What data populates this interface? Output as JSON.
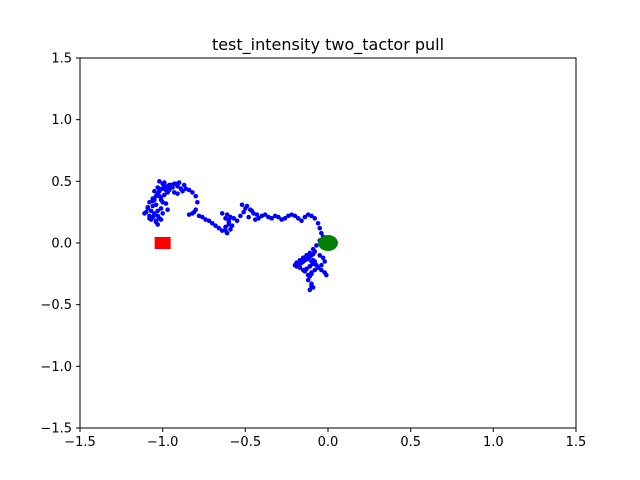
{
  "chart_data": {
    "type": "scatter",
    "title": "test_intensity two_tactor pull",
    "xlabel": "",
    "ylabel": "",
    "xlim": [
      -1.5,
      1.5
    ],
    "ylim": [
      -1.5,
      1.5
    ],
    "xticks": [
      -1.5,
      -1.0,
      -0.5,
      0.0,
      0.5,
      1.0,
      1.5
    ],
    "xtick_labels": [
      "−1.5",
      "−1.0",
      "−0.5",
      "0.0",
      "0.5",
      "1.0",
      "1.5"
    ],
    "yticks": [
      -1.5,
      -1.0,
      -0.5,
      0.0,
      0.5,
      1.0,
      1.5
    ],
    "ytick_labels": [
      "−1.5",
      "−1.0",
      "−0.5",
      "0.0",
      "0.5",
      "1.0",
      "1.5"
    ],
    "grid": false,
    "series": [
      {
        "color": "#0000ff",
        "marker": "dot",
        "x": [
          -1.08,
          -1.1,
          -1.09,
          -1.06,
          -1.05,
          -1.07,
          -1.04,
          -1.03,
          -1.06,
          -1.08,
          -1.05,
          -1.03,
          -1.01,
          -1.04,
          -1.06,
          -1.02,
          -1.0,
          -1.03,
          -1.05,
          -1.02,
          -0.99,
          -1.01,
          -1.03,
          -0.99,
          -0.97,
          -1.0,
          -1.02,
          -0.98,
          -0.96,
          -0.99,
          -1.01,
          -0.98,
          -0.95,
          -0.97,
          -1.0,
          -1.02,
          -1.04,
          -1.06,
          -1.03,
          -1.01,
          -1.05,
          -1.07,
          -1.09,
          -1.11,
          -1.08,
          -1.06,
          -1.04,
          -1.02,
          -1.0,
          -0.97,
          -0.95,
          -0.93,
          -0.91,
          -0.89,
          -0.87,
          -0.9,
          -0.92,
          -0.94,
          -0.96,
          -0.93,
          -0.91,
          -0.88,
          -0.86,
          -0.84,
          -0.82,
          -0.8,
          -0.79,
          -0.8,
          -0.82,
          -0.84,
          -0.81,
          -0.78,
          -0.76,
          -0.74,
          -0.72,
          -0.7,
          -0.68,
          -0.66,
          -0.64,
          -0.62,
          -0.6,
          -0.62,
          -0.64,
          -0.61,
          -0.59,
          -0.6,
          -0.62,
          -0.61,
          -0.59,
          -0.58,
          -0.6,
          -0.57,
          -0.55,
          -0.53,
          -0.51,
          -0.5,
          -0.52,
          -0.49,
          -0.47,
          -0.45,
          -0.43,
          -0.46,
          -0.48,
          -0.44,
          -0.42,
          -0.4,
          -0.38,
          -0.36,
          -0.34,
          -0.32,
          -0.3,
          -0.28,
          -0.26,
          -0.24,
          -0.22,
          -0.2,
          -0.18,
          -0.16,
          -0.14,
          -0.12,
          -0.1,
          -0.08,
          -0.06,
          -0.05,
          -0.04,
          -0.03,
          -0.05,
          -0.07,
          -0.09,
          -0.11,
          -0.13,
          -0.15,
          -0.17,
          -0.19,
          -0.2,
          -0.19,
          -0.17,
          -0.15,
          -0.13,
          -0.11,
          -0.09,
          -0.08,
          -0.1,
          -0.12,
          -0.14,
          -0.16,
          -0.18,
          -0.17,
          -0.15,
          -0.13,
          -0.11,
          -0.09,
          -0.1,
          -0.12,
          -0.11,
          -0.09,
          -0.07,
          -0.06,
          -0.08,
          -0.1,
          -0.12,
          -0.14,
          -0.13,
          -0.11,
          -0.09,
          -0.08,
          -0.1,
          -0.11,
          -0.12,
          -0.1,
          -0.09,
          -0.11,
          -0.1,
          -0.05,
          -0.03,
          -0.02,
          -0.04,
          -0.06,
          -0.04,
          -0.02,
          -0.01
        ],
        "y": [
          0.22,
          0.25,
          0.28,
          0.21,
          0.24,
          0.19,
          0.18,
          0.26,
          0.3,
          0.33,
          0.35,
          0.22,
          0.28,
          0.31,
          0.36,
          0.38,
          0.33,
          0.4,
          0.42,
          0.44,
          0.39,
          0.37,
          0.45,
          0.46,
          0.41,
          0.48,
          0.5,
          0.43,
          0.47,
          0.49,
          0.35,
          0.32,
          0.45,
          0.27,
          0.24,
          0.2,
          0.17,
          0.21,
          0.15,
          0.19,
          0.23,
          0.26,
          0.29,
          0.24,
          0.2,
          0.34,
          0.38,
          0.42,
          0.44,
          0.46,
          0.47,
          0.48,
          0.46,
          0.44,
          0.47,
          0.49,
          0.48,
          0.45,
          0.43,
          0.41,
          0.4,
          0.42,
          0.44,
          0.43,
          0.41,
          0.38,
          0.33,
          0.27,
          0.24,
          0.23,
          0.25,
          0.22,
          0.21,
          0.19,
          0.18,
          0.16,
          0.14,
          0.12,
          0.1,
          0.13,
          0.17,
          0.2,
          0.24,
          0.23,
          0.21,
          0.15,
          0.1,
          0.08,
          0.11,
          0.14,
          0.19,
          0.2,
          0.18,
          0.22,
          0.25,
          0.28,
          0.31,
          0.3,
          0.27,
          0.24,
          0.23,
          0.26,
          0.21,
          0.19,
          0.2,
          0.22,
          0.23,
          0.21,
          0.2,
          0.22,
          0.21,
          0.19,
          0.2,
          0.22,
          0.23,
          0.22,
          0.2,
          0.18,
          0.21,
          0.23,
          0.22,
          0.2,
          0.16,
          0.12,
          0.08,
          0.05,
          0.02,
          -0.02,
          -0.05,
          -0.08,
          -0.1,
          -0.12,
          -0.14,
          -0.16,
          -0.18,
          -0.19,
          -0.17,
          -0.15,
          -0.13,
          -0.11,
          -0.09,
          -0.07,
          -0.1,
          -0.12,
          -0.14,
          -0.16,
          -0.18,
          -0.2,
          -0.22,
          -0.21,
          -0.19,
          -0.17,
          -0.15,
          -0.13,
          -0.11,
          -0.14,
          -0.18,
          -0.2,
          -0.22,
          -0.24,
          -0.26,
          -0.23,
          -0.21,
          -0.19,
          -0.17,
          -0.15,
          -0.25,
          -0.27,
          -0.3,
          -0.33,
          -0.36,
          -0.38,
          -0.35,
          -0.1,
          -0.12,
          -0.15,
          -0.18,
          -0.2,
          -0.22,
          -0.24,
          -0.26
        ]
      }
    ],
    "markers": [
      {
        "shape": "square",
        "color": "#ff0000",
        "x": -1.0,
        "y": 0.0
      },
      {
        "shape": "circle",
        "color": "#008000",
        "x": 0.0,
        "y": 0.0
      }
    ]
  }
}
